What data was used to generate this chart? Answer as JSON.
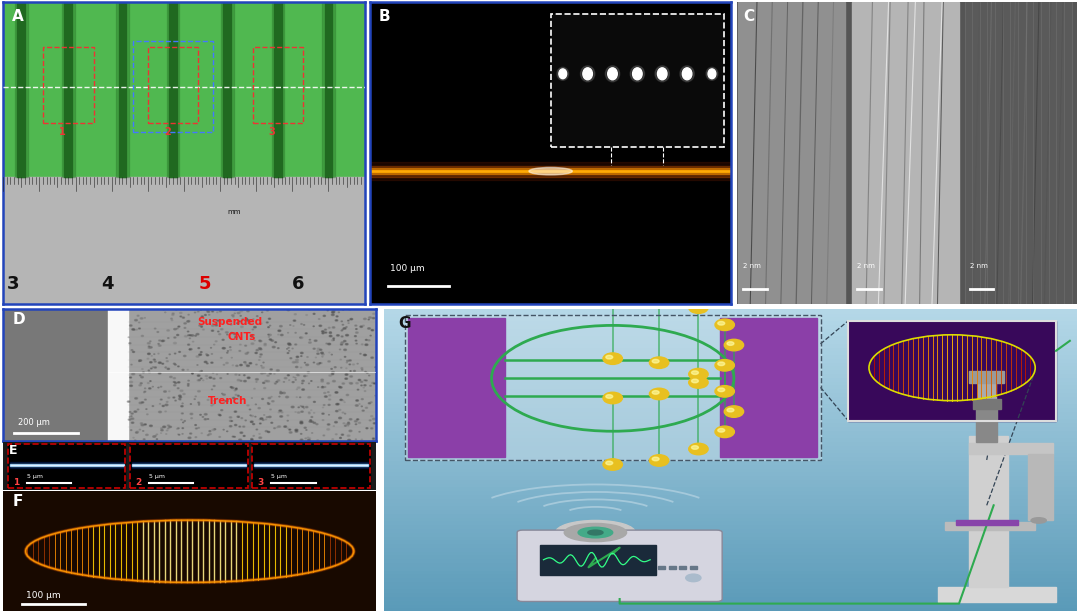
{
  "bg_color": "#ffffff",
  "panel_A": {
    "green_bg": "#4caf50",
    "dark_green": "#1b7a2a",
    "ruler_bg": "#b0b0b0",
    "label": "A"
  },
  "panel_B": {
    "bg_color": "#000000",
    "label": "B",
    "scale_text": "100 μm",
    "inset_bg": "#111111"
  },
  "panel_C": {
    "label": "C",
    "scale_text": "2 nm",
    "bg_colors": [
      "#909090",
      "#b0b0b0",
      "#606060"
    ]
  },
  "panel_D": {
    "label": "D",
    "text1": "Suspended",
    "text2": "CNTs",
    "text3": "Trench",
    "scale_text": "200 μm"
  },
  "panel_E": {
    "bg_color": "#000000",
    "border_color": "#dd0000",
    "label": "E",
    "scale_text": "5 μm"
  },
  "panel_F": {
    "bg_color": "#150800",
    "label": "F",
    "scale_text": "100 μm"
  },
  "panel_G": {
    "bg_top": "#6aafcc",
    "bg_bot": "#a0cedd",
    "label": "G",
    "purple_color": "#8b3fa8",
    "yellow_color": "#e8c020",
    "green_color": "#2eaa50",
    "inset_bg": "#3a0858"
  }
}
